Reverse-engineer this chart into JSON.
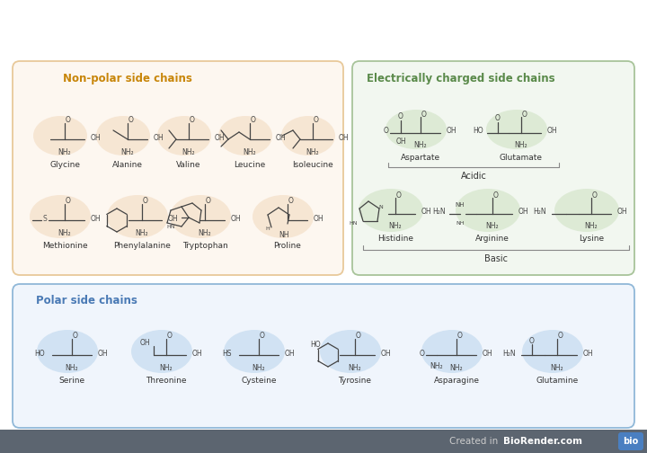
{
  "bg_color": "#ffffff",
  "nonpolar_box": {
    "label": "Non-polar side chains",
    "label_color": "#c8860a",
    "border_color": "#e8c99a",
    "face_color": "#fdf7f0"
  },
  "electrically_box": {
    "label": "Electrically charged side chains",
    "label_color": "#5a8a4a",
    "border_color": "#a8c49a",
    "face_color": "#f2f7f0"
  },
  "polar_box": {
    "label": "Polar side chains",
    "label_color": "#4a7ab5",
    "border_color": "#90b8d8",
    "face_color": "#f0f5fc"
  },
  "footer_bg": "#5c6570",
  "footer_bio_bg": "#4a7fc1",
  "nonpolar_hl": "#f2d8bc",
  "electrically_hl": "#cce0c0",
  "polar_hl": "#b8d4ec"
}
